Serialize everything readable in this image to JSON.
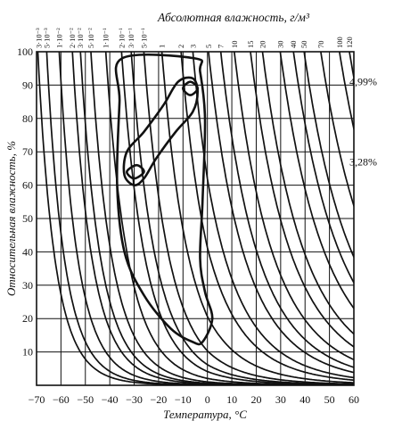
{
  "chart_data": {
    "type": "line",
    "title": "Абсолютная влажность, г/м³",
    "xlabel": "Температура, °С",
    "ylabel": "Относительная влажность, %",
    "xlim": [
      -70,
      60
    ],
    "ylim": [
      0,
      100
    ],
    "x_ticks": [
      "-70",
      "-60",
      "-50",
      "-40",
      "-30",
      "-20",
      "-10",
      "0",
      "10",
      "20",
      "30",
      "40",
      "50",
      "60"
    ],
    "y_ticks": [
      "10",
      "20",
      "30",
      "40",
      "50",
      "60",
      "70",
      "80",
      "90",
      "100"
    ],
    "grid": true,
    "isolines": {
      "label": "Абсолютная влажность, г/м³",
      "values": [
        "3·10⁻³",
        "5·10⁻³",
        "1·10⁻²",
        "2·10⁻²",
        "3·10⁻²",
        "5·10⁻²",
        "1·10⁻¹",
        "2·10⁻¹",
        "3·10⁻¹",
        "5·10⁻¹",
        "1",
        "2",
        "3",
        "5",
        "7",
        "10",
        "15",
        "20",
        "30",
        "40",
        "50",
        "70",
        "100",
        "120"
      ],
      "numeric": [
        0.003,
        0.005,
        0.01,
        0.02,
        0.03,
        0.05,
        0.1,
        0.2,
        0.3,
        0.5,
        1,
        2,
        3,
        5,
        7,
        10,
        15,
        20,
        30,
        40,
        50,
        70,
        100,
        120
      ]
    },
    "annotations": [
      {
        "text": "4,99%",
        "y": 91
      },
      {
        "text": "3,28%",
        "y": 67
      }
    ],
    "regions": [
      {
        "name": "outer",
        "points": [
          [
            -35,
            98
          ],
          [
            -5,
            98
          ],
          [
            -3,
            94
          ],
          [
            -1,
            80
          ],
          [
            -2,
            55
          ],
          [
            -3,
            38
          ],
          [
            -1,
            28
          ],
          [
            2,
            20
          ],
          [
            -2,
            13
          ],
          [
            -6,
            13
          ],
          [
            -15,
            17
          ],
          [
            -26,
            27
          ],
          [
            -34,
            40
          ],
          [
            -37,
            60
          ],
          [
            -36,
            85
          ],
          [
            -35,
            98
          ]
        ]
      },
      {
        "name": "middle",
        "points": [
          [
            -12,
            91
          ],
          [
            -6,
            92
          ],
          [
            -4,
            88
          ],
          [
            -6,
            82
          ],
          [
            -13,
            76
          ],
          [
            -21,
            68
          ],
          [
            -26,
            62
          ],
          [
            -30,
            60
          ],
          [
            -34,
            63
          ],
          [
            -33,
            70
          ],
          [
            -26,
            76
          ],
          [
            -18,
            84
          ],
          [
            -12,
            91
          ]
        ]
      },
      {
        "name": "small-upper",
        "points": [
          [
            -10,
            89
          ],
          [
            -7,
            91
          ],
          [
            -4,
            89
          ],
          [
            -7,
            87
          ],
          [
            -10,
            89
          ]
        ]
      },
      {
        "name": "small-lower",
        "points": [
          [
            -33,
            64
          ],
          [
            -29,
            66
          ],
          [
            -26,
            64
          ],
          [
            -30,
            62
          ],
          [
            -33,
            64
          ]
        ]
      }
    ]
  }
}
